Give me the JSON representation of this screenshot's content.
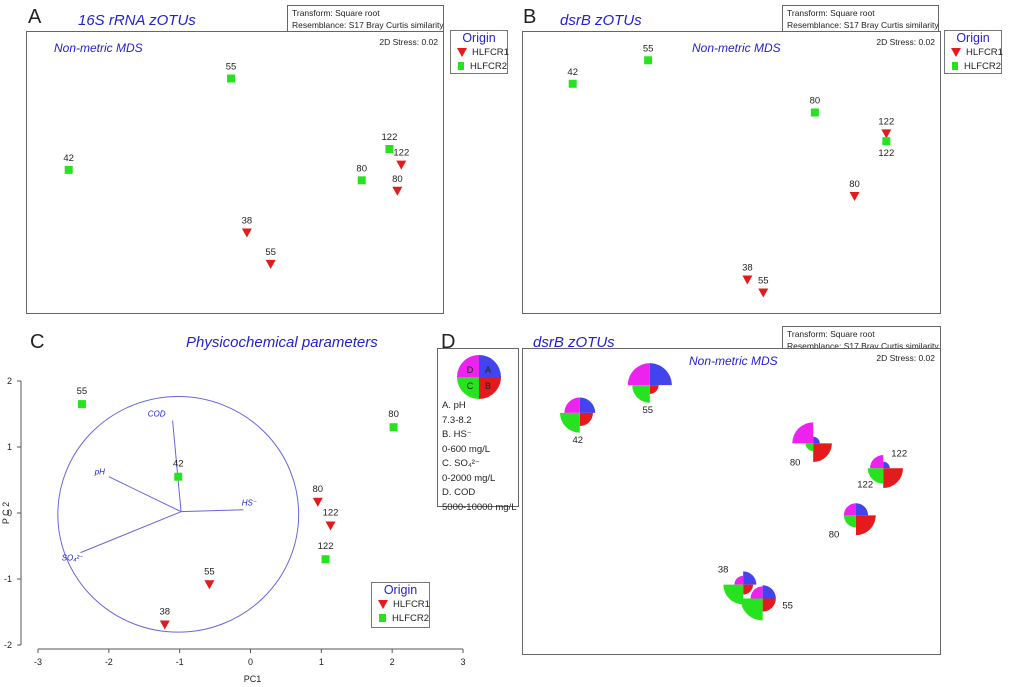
{
  "colors": {
    "hlfcr1": "#e41a1c",
    "hlfcr2": "#27e21f",
    "blue_label": "#2222cc",
    "pie_pH": "#ee22ee",
    "pie_HS": "#e41a1c",
    "pie_SO4": "#27e21f",
    "pie_COD": "#4444ee"
  },
  "legend": {
    "title": "Origin",
    "items": [
      "HLFCR1",
      "HLFCR2"
    ]
  },
  "panelA": {
    "letter": "A",
    "title": "16S rRNA zOTUs",
    "transform": "Transform: Square root",
    "resemblance": "Resemblance: S17 Bray Curtis similarity",
    "stress": "2D Stress: 0.02",
    "mds_label": "Non-metric MDS"
  },
  "panelB": {
    "letter": "B",
    "title": "dsrB zOTUs",
    "transform": "Transform: Square root",
    "resemblance": "Resemblance: S17 Bray Curtis similarity",
    "stress": "2D Stress: 0.02",
    "mds_label": "Non-metric MDS"
  },
  "panelC": {
    "letter": "C",
    "title": "Physicochemical parameters"
  },
  "panelD": {
    "letter": "D",
    "title": "dsrB zOTUs",
    "transform": "Transform: Square root",
    "resemblance": "Resemblance: S17 Bray Curtis similarity",
    "stress": "2D Stress: 0.02",
    "mds_label": "Non-metric MDS",
    "key": {
      "quadrants": [
        "D",
        "A",
        "C",
        "B"
      ],
      "lines": [
        "A.   pH",
        "        7.3-8.2",
        "B.   HS⁻",
        "        0-600 mg/L",
        "C.   SO₄²⁻",
        "        0-2000 mg/L",
        "D.   COD",
        "      5000-10000 mg/L"
      ]
    }
  },
  "chart_data": [
    {
      "panel": "A",
      "type": "scatter",
      "title": "16S rRNA zOTUs",
      "subtitle": "Non-metric MDS",
      "annotation": "2D Stress: 0.02",
      "xlim": [
        0,
        1
      ],
      "ylim": [
        0,
        1
      ],
      "series": [
        {
          "name": "HLFCR1",
          "marker": "triangle-down",
          "color": "#e41a1c",
          "points": [
            {
              "label": "122",
              "x": 0.92,
              "y": 0.53
            },
            {
              "label": "80",
              "x": 0.91,
              "y": 0.43
            },
            {
              "label": "38",
              "x": 0.53,
              "y": 0.27
            },
            {
              "label": "55",
              "x": 0.59,
              "y": 0.15
            }
          ]
        },
        {
          "name": "HLFCR2",
          "marker": "square",
          "color": "#27e21f",
          "points": [
            {
              "label": "55",
              "x": 0.49,
              "y": 0.86
            },
            {
              "label": "42",
              "x": 0.08,
              "y": 0.51
            },
            {
              "label": "122",
              "x": 0.89,
              "y": 0.59
            },
            {
              "label": "80",
              "x": 0.82,
              "y": 0.47
            }
          ]
        }
      ]
    },
    {
      "panel": "B",
      "type": "scatter",
      "title": "dsrB zOTUs",
      "subtitle": "Non-metric MDS",
      "annotation": "2D Stress: 0.02",
      "xlim": [
        0,
        1
      ],
      "ylim": [
        0,
        1
      ],
      "series": [
        {
          "name": "HLFCR1",
          "marker": "triangle-down",
          "color": "#e41a1c",
          "points": [
            {
              "label": "122",
              "x": 0.89,
              "y": 0.65
            },
            {
              "label": "80",
              "x": 0.81,
              "y": 0.41
            },
            {
              "label": "38",
              "x": 0.54,
              "y": 0.09
            },
            {
              "label": "55",
              "x": 0.58,
              "y": 0.04
            }
          ]
        },
        {
          "name": "HLFCR2",
          "marker": "square",
          "color": "#27e21f",
          "points": [
            {
              "label": "55",
              "x": 0.29,
              "y": 0.93
            },
            {
              "label": "42",
              "x": 0.1,
              "y": 0.84
            },
            {
              "label": "80",
              "x": 0.71,
              "y": 0.73
            },
            {
              "label": "122",
              "x": 0.89,
              "y": 0.62
            }
          ]
        }
      ]
    },
    {
      "panel": "C",
      "type": "scatter",
      "title": "Physicochemical parameters",
      "xlabel": "PC1",
      "ylabel": "P C 2",
      "xlim": [
        -3,
        3
      ],
      "ylim": [
        -2,
        2
      ],
      "xticks": [
        -3,
        -2,
        -1,
        0,
        1,
        2,
        3
      ],
      "yticks": [
        -2,
        -1,
        0,
        1,
        2
      ],
      "series": [
        {
          "name": "HLFCR1",
          "marker": "triangle-down",
          "color": "#e41a1c",
          "points": [
            {
              "label": "80",
              "x": 0.95,
              "y": 0.17
            },
            {
              "label": "122",
              "x": 1.13,
              "y": -0.19
            },
            {
              "label": "55",
              "x": -0.58,
              "y": -1.08
            },
            {
              "label": "38",
              "x": -1.21,
              "y": -1.69
            }
          ]
        },
        {
          "name": "HLFCR2",
          "marker": "square",
          "color": "#27e21f",
          "points": [
            {
              "label": "55",
              "x": -2.38,
              "y": 1.65
            },
            {
              "label": "42",
              "x": -1.02,
              "y": 0.55
            },
            {
              "label": "80",
              "x": 2.02,
              "y": 1.3
            },
            {
              "label": "122",
              "x": 1.06,
              "y": -0.7
            }
          ]
        }
      ],
      "vectors": [
        {
          "label": "COD",
          "x": -1.1,
          "y": 1.4
        },
        {
          "label": "pH",
          "x": -2.0,
          "y": 0.55
        },
        {
          "label": "HS⁻",
          "x": -0.1,
          "y": 0.05
        },
        {
          "label": "SO₄²⁻",
          "x": -2.4,
          "y": -0.6
        }
      ],
      "circle": {
        "cx": -1.02,
        "cy": -0.02,
        "radius": 1.7
      }
    },
    {
      "panel": "D",
      "type": "scatter",
      "title": "dsrB zOTUs",
      "subtitle": "Non-metric MDS",
      "annotation": "2D Stress: 0.02",
      "marker": "segmented-pie",
      "segments": [
        "pH",
        "HS⁻",
        "SO₄²⁻",
        "COD"
      ],
      "xlim": [
        0,
        1
      ],
      "ylim": [
        0,
        1
      ],
      "points": [
        {
          "label": "42",
          "x": 0.11,
          "y": 0.82,
          "pH": 0.7,
          "HS": 0.6,
          "SO4": 0.9,
          "COD": 0.7
        },
        {
          "label": "55",
          "x": 0.29,
          "y": 0.92,
          "pH": 1.0,
          "HS": 0.4,
          "SO4": 0.8,
          "COD": 1.0
        },
        {
          "label": "80",
          "x": 0.71,
          "y": 0.71,
          "pH": 0.95,
          "HS": 0.85,
          "SO4": 0.35,
          "COD": 0.3
        },
        {
          "label": "122",
          "x": 0.89,
          "y": 0.62,
          "pH": 0.6,
          "HS": 0.9,
          "SO4": 0.7,
          "COD": 0.3
        },
        {
          "label": "80",
          "x": 0.82,
          "y": 0.45,
          "pH": 0.55,
          "HS": 0.9,
          "SO4": 0.55,
          "COD": 0.55
        },
        {
          "label": "38",
          "x": 0.53,
          "y": 0.2,
          "pH": 0.4,
          "HS": 0.45,
          "SO4": 0.9,
          "COD": 0.6
        },
        {
          "label": "55",
          "x": 0.58,
          "y": 0.15,
          "pH": 0.55,
          "HS": 0.6,
          "SO4": 1.0,
          "COD": 0.6
        }
      ]
    }
  ]
}
